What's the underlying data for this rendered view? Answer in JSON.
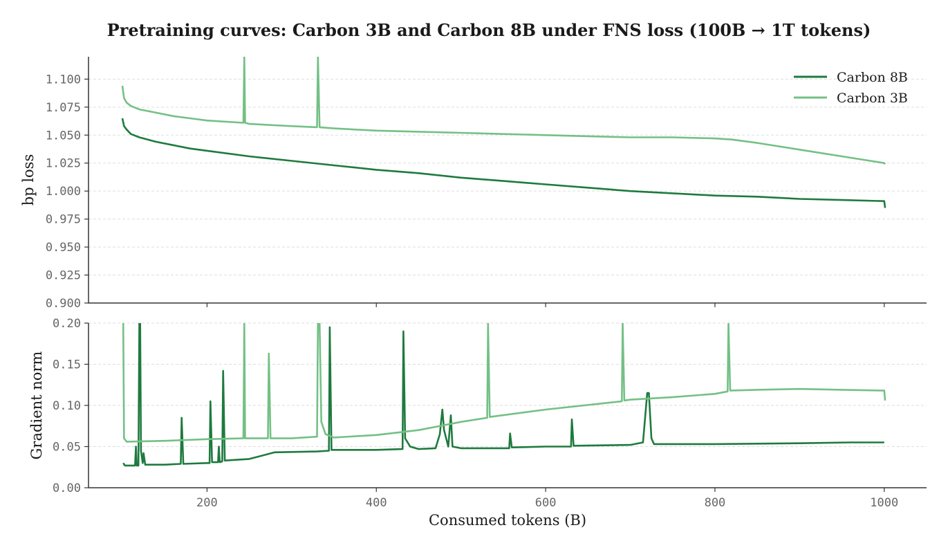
{
  "chart_data": [
    {
      "type": "line",
      "title": "Pretraining curves: Carbon 3B and Carbon 8B under FNS loss (100B → 1T tokens)",
      "ylabel": "bp loss",
      "xlim": [
        60,
        1050
      ],
      "ylim": [
        0.9,
        1.12
      ],
      "yticks": [
        "0.900",
        "0.925",
        "0.950",
        "0.975",
        "1.000",
        "1.025",
        "1.050",
        "1.075",
        "1.100"
      ],
      "grid": true,
      "legend_position": "top-right",
      "series": [
        {
          "name": "Carbon 8B",
          "color": "#1e7a3e",
          "points": [
            [
              100,
              1.065
            ],
            [
              102,
              1.058
            ],
            [
              105,
              1.055
            ],
            [
              110,
              1.051
            ],
            [
              120,
              1.048
            ],
            [
              140,
              1.044
            ],
            [
              160,
              1.041
            ],
            [
              180,
              1.038
            ],
            [
              200,
              1.036
            ],
            [
              250,
              1.031
            ],
            [
              300,
              1.027
            ],
            [
              350,
              1.023
            ],
            [
              400,
              1.019
            ],
            [
              450,
              1.016
            ],
            [
              500,
              1.012
            ],
            [
              550,
              1.009
            ],
            [
              600,
              1.006
            ],
            [
              650,
              1.003
            ],
            [
              700,
              1.0
            ],
            [
              750,
              0.998
            ],
            [
              800,
              0.996
            ],
            [
              850,
              0.995
            ],
            [
              900,
              0.993
            ],
            [
              950,
              0.992
            ],
            [
              1000,
              0.991
            ],
            [
              1001,
              0.985
            ]
          ]
        },
        {
          "name": "Carbon 3B",
          "color": "#74c085",
          "points": [
            [
              100,
              1.094
            ],
            [
              102,
              1.083
            ],
            [
              105,
              1.079
            ],
            [
              110,
              1.076
            ],
            [
              120,
              1.073
            ],
            [
              140,
              1.07
            ],
            [
              160,
              1.067
            ],
            [
              180,
              1.065
            ],
            [
              200,
              1.063
            ],
            [
              243,
              1.061
            ],
            [
              244,
              1.12
            ],
            [
              245,
              1.061
            ],
            [
              250,
              1.06
            ],
            [
              300,
              1.058
            ],
            [
              330,
              1.057
            ],
            [
              331,
              1.12
            ],
            [
              333,
              1.057
            ],
            [
              350,
              1.056
            ],
            [
              400,
              1.054
            ],
            [
              450,
              1.053
            ],
            [
              500,
              1.052
            ],
            [
              550,
              1.051
            ],
            [
              600,
              1.05
            ],
            [
              650,
              1.049
            ],
            [
              700,
              1.048
            ],
            [
              750,
              1.048
            ],
            [
              800,
              1.047
            ],
            [
              820,
              1.046
            ],
            [
              850,
              1.043
            ],
            [
              900,
              1.037
            ],
            [
              950,
              1.031
            ],
            [
              1000,
              1.025
            ],
            [
              1001,
              1.024
            ]
          ]
        }
      ]
    },
    {
      "type": "line",
      "xlabel": "Consumed tokens (B)",
      "ylabel": "Gradient norm",
      "xlim": [
        60,
        1050
      ],
      "ylim": [
        0.0,
        0.2
      ],
      "xticks": [
        "200",
        "400",
        "600",
        "800",
        "1000"
      ],
      "yticks": [
        "0.00",
        "0.05",
        "0.10",
        "0.15",
        "0.20"
      ],
      "grid": true,
      "series": [
        {
          "name": "Carbon 8B",
          "color": "#1e7a3e",
          "points": [
            [
              101,
              0.03
            ],
            [
              103,
              0.027
            ],
            [
              115,
              0.027
            ],
            [
              116,
              0.05
            ],
            [
              117,
              0.027
            ],
            [
              119,
              0.027
            ],
            [
              120,
              0.2
            ],
            [
              121,
              0.2
            ],
            [
              122,
              0.045
            ],
            [
              124,
              0.03
            ],
            [
              125,
              0.042
            ],
            [
              127,
              0.028
            ],
            [
              150,
              0.028
            ],
            [
              169,
              0.029
            ],
            [
              170,
              0.085
            ],
            [
              172,
              0.029
            ],
            [
              200,
              0.03
            ],
            [
              203,
              0.03
            ],
            [
              204,
              0.105
            ],
            [
              206,
              0.031
            ],
            [
              213,
              0.031
            ],
            [
              214,
              0.05
            ],
            [
              215,
              0.031
            ],
            [
              218,
              0.032
            ],
            [
              219,
              0.142
            ],
            [
              221,
              0.033
            ],
            [
              250,
              0.035
            ],
            [
              280,
              0.043
            ],
            [
              330,
              0.044
            ],
            [
              344,
              0.045
            ],
            [
              345,
              0.195
            ],
            [
              347,
              0.046
            ],
            [
              400,
              0.046
            ],
            [
              431,
              0.047
            ],
            [
              432,
              0.19
            ],
            [
              434,
              0.06
            ],
            [
              440,
              0.05
            ],
            [
              450,
              0.047
            ],
            [
              470,
              0.048
            ],
            [
              475,
              0.065
            ],
            [
              478,
              0.095
            ],
            [
              480,
              0.07
            ],
            [
              485,
              0.05
            ],
            [
              488,
              0.088
            ],
            [
              490,
              0.05
            ],
            [
              500,
              0.048
            ],
            [
              557,
              0.048
            ],
            [
              558,
              0.066
            ],
            [
              560,
              0.049
            ],
            [
              600,
              0.05
            ],
            [
              630,
              0.05
            ],
            [
              631,
              0.083
            ],
            [
              633,
              0.051
            ],
            [
              700,
              0.052
            ],
            [
              715,
              0.055
            ],
            [
              720,
              0.115
            ],
            [
              722,
              0.115
            ],
            [
              725,
              0.06
            ],
            [
              728,
              0.053
            ],
            [
              800,
              0.053
            ],
            [
              900,
              0.054
            ],
            [
              960,
              0.055
            ],
            [
              1000,
              0.055
            ]
          ]
        },
        {
          "name": "Carbon 3B",
          "color": "#74c085",
          "points": [
            [
              100,
              0.2
            ],
            [
              101,
              0.2
            ],
            [
              102,
              0.06
            ],
            [
              105,
              0.056
            ],
            [
              150,
              0.057
            ],
            [
              200,
              0.059
            ],
            [
              243,
              0.06
            ],
            [
              244,
              0.2
            ],
            [
              245,
              0.06
            ],
            [
              272,
              0.06
            ],
            [
              273,
              0.163
            ],
            [
              275,
              0.06
            ],
            [
              300,
              0.06
            ],
            [
              330,
              0.062
            ],
            [
              331,
              0.2
            ],
            [
              333,
              0.2
            ],
            [
              335,
              0.08
            ],
            [
              340,
              0.065
            ],
            [
              350,
              0.061
            ],
            [
              400,
              0.064
            ],
            [
              450,
              0.07
            ],
            [
              500,
              0.08
            ],
            [
              531,
              0.085
            ],
            [
              532,
              0.2
            ],
            [
              534,
              0.086
            ],
            [
              600,
              0.095
            ],
            [
              690,
              0.105
            ],
            [
              691,
              0.2
            ],
            [
              693,
              0.106
            ],
            [
              700,
              0.107
            ],
            [
              750,
              0.11
            ],
            [
              800,
              0.114
            ],
            [
              815,
              0.117
            ],
            [
              816,
              0.2
            ],
            [
              818,
              0.118
            ],
            [
              850,
              0.119
            ],
            [
              900,
              0.12
            ],
            [
              950,
              0.119
            ],
            [
              1000,
              0.118
            ],
            [
              1001,
              0.106
            ]
          ]
        }
      ]
    }
  ]
}
